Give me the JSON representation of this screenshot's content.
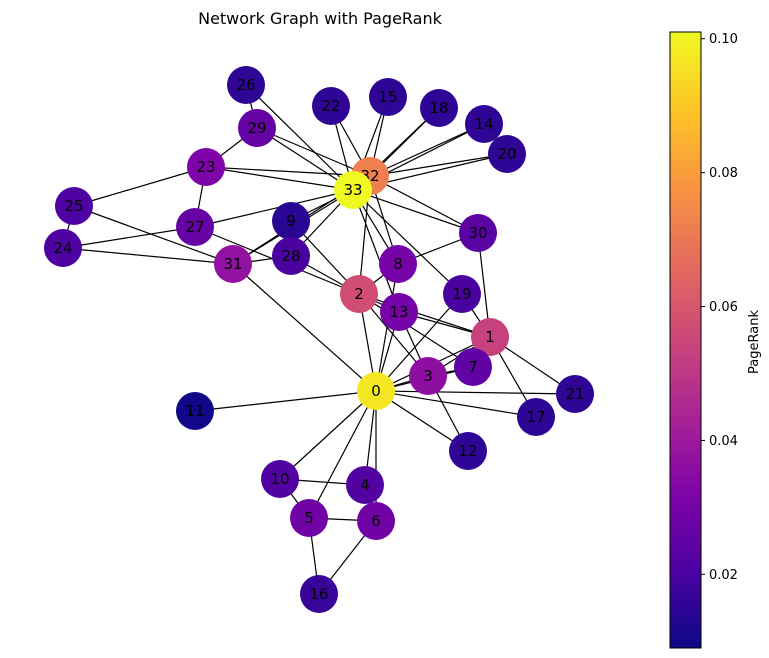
{
  "title": "Network Graph with PageRank",
  "colorbar": {
    "label": "PageRank",
    "min": 0.009,
    "max": 0.101,
    "ticks": [
      "0.02",
      "0.04",
      "0.06",
      "0.08",
      "0.10"
    ],
    "tick_values": [
      0.02,
      0.04,
      0.06,
      0.08,
      0.1
    ],
    "colormap": "plasma"
  },
  "nodes": [
    {
      "id": "0",
      "pagerank": 0.097
    },
    {
      "id": "1",
      "pagerank": 0.053
    },
    {
      "id": "2",
      "pagerank": 0.057
    },
    {
      "id": "3",
      "pagerank": 0.036
    },
    {
      "id": "4",
      "pagerank": 0.022
    },
    {
      "id": "5",
      "pagerank": 0.029
    },
    {
      "id": "6",
      "pagerank": 0.029
    },
    {
      "id": "7",
      "pagerank": 0.025
    },
    {
      "id": "8",
      "pagerank": 0.03
    },
    {
      "id": "9",
      "pagerank": 0.014
    },
    {
      "id": "10",
      "pagerank": 0.022
    },
    {
      "id": "11",
      "pagerank": 0.01
    },
    {
      "id": "12",
      "pagerank": 0.015
    },
    {
      "id": "13",
      "pagerank": 0.03
    },
    {
      "id": "14",
      "pagerank": 0.015
    },
    {
      "id": "15",
      "pagerank": 0.015
    },
    {
      "id": "16",
      "pagerank": 0.017
    },
    {
      "id": "17",
      "pagerank": 0.015
    },
    {
      "id": "18",
      "pagerank": 0.015
    },
    {
      "id": "19",
      "pagerank": 0.02
    },
    {
      "id": "20",
      "pagerank": 0.015
    },
    {
      "id": "21",
      "pagerank": 0.015
    },
    {
      "id": "22",
      "pagerank": 0.015
    },
    {
      "id": "23",
      "pagerank": 0.032
    },
    {
      "id": "24",
      "pagerank": 0.021
    },
    {
      "id": "25",
      "pagerank": 0.021
    },
    {
      "id": "26",
      "pagerank": 0.015
    },
    {
      "id": "27",
      "pagerank": 0.026
    },
    {
      "id": "28",
      "pagerank": 0.02
    },
    {
      "id": "29",
      "pagerank": 0.026
    },
    {
      "id": "30",
      "pagerank": 0.024
    },
    {
      "id": "31",
      "pagerank": 0.037
    },
    {
      "id": "32",
      "pagerank": 0.072
    },
    {
      "id": "33",
      "pagerank": 0.101
    }
  ],
  "edges": [
    [
      "0",
      "1"
    ],
    [
      "0",
      "2"
    ],
    [
      "0",
      "3"
    ],
    [
      "0",
      "4"
    ],
    [
      "0",
      "5"
    ],
    [
      "0",
      "6"
    ],
    [
      "0",
      "7"
    ],
    [
      "0",
      "8"
    ],
    [
      "0",
      "10"
    ],
    [
      "0",
      "11"
    ],
    [
      "0",
      "12"
    ],
    [
      "0",
      "13"
    ],
    [
      "0",
      "17"
    ],
    [
      "0",
      "19"
    ],
    [
      "0",
      "21"
    ],
    [
      "0",
      "31"
    ],
    [
      "1",
      "2"
    ],
    [
      "1",
      "3"
    ],
    [
      "1",
      "7"
    ],
    [
      "1",
      "13"
    ],
    [
      "1",
      "17"
    ],
    [
      "1",
      "19"
    ],
    [
      "1",
      "21"
    ],
    [
      "1",
      "30"
    ],
    [
      "2",
      "3"
    ],
    [
      "2",
      "7"
    ],
    [
      "2",
      "8"
    ],
    [
      "2",
      "9"
    ],
    [
      "2",
      "13"
    ],
    [
      "2",
      "27"
    ],
    [
      "2",
      "28"
    ],
    [
      "2",
      "32"
    ],
    [
      "3",
      "7"
    ],
    [
      "3",
      "12"
    ],
    [
      "3",
      "13"
    ],
    [
      "4",
      "6"
    ],
    [
      "4",
      "10"
    ],
    [
      "5",
      "6"
    ],
    [
      "5",
      "10"
    ],
    [
      "5",
      "16"
    ],
    [
      "6",
      "16"
    ],
    [
      "8",
      "30"
    ],
    [
      "8",
      "32"
    ],
    [
      "8",
      "33"
    ],
    [
      "9",
      "33"
    ],
    [
      "13",
      "33"
    ],
    [
      "14",
      "32"
    ],
    [
      "14",
      "33"
    ],
    [
      "15",
      "32"
    ],
    [
      "15",
      "33"
    ],
    [
      "18",
      "32"
    ],
    [
      "18",
      "33"
    ],
    [
      "19",
      "33"
    ],
    [
      "20",
      "32"
    ],
    [
      "20",
      "33"
    ],
    [
      "22",
      "32"
    ],
    [
      "22",
      "33"
    ],
    [
      "23",
      "25"
    ],
    [
      "23",
      "27"
    ],
    [
      "23",
      "29"
    ],
    [
      "23",
      "32"
    ],
    [
      "23",
      "33"
    ],
    [
      "24",
      "25"
    ],
    [
      "24",
      "27"
    ],
    [
      "24",
      "31"
    ],
    [
      "25",
      "31"
    ],
    [
      "26",
      "29"
    ],
    [
      "26",
      "33"
    ],
    [
      "27",
      "33"
    ],
    [
      "28",
      "31"
    ],
    [
      "28",
      "33"
    ],
    [
      "29",
      "32"
    ],
    [
      "29",
      "33"
    ],
    [
      "30",
      "32"
    ],
    [
      "30",
      "33"
    ],
    [
      "31",
      "32"
    ],
    [
      "31",
      "33"
    ],
    [
      "32",
      "33"
    ]
  ]
}
